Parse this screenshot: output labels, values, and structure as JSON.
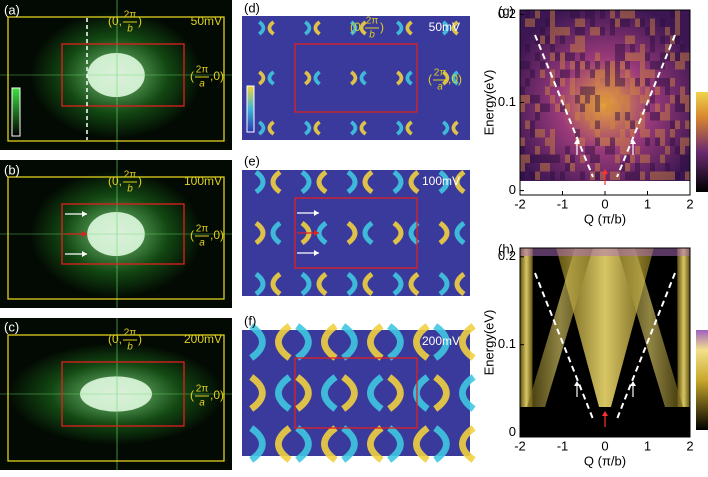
{
  "panels": [
    {
      "label": "(a)",
      "bias": "50mV",
      "top": {
        "open": "(0,",
        "num": "2π",
        "den": "b",
        "close": ")"
      },
      "right": {
        "open": "(",
        "num": "2π",
        "den": "a",
        "close": ",0)"
      }
    },
    {
      "label": "(b)",
      "bias": "100mV",
      "top": {
        "open": "(0,",
        "num": "2π",
        "den": "b",
        "close": ")"
      },
      "right": {
        "open": "(",
        "num": "2π",
        "den": "a",
        "close": ",0)"
      }
    },
    {
      "label": "(c)",
      "bias": "200mV",
      "top": {
        "open": "(0,",
        "num": "2π",
        "den": "b",
        "close": ")"
      },
      "right": {
        "open": "(",
        "num": "2π",
        "den": "a",
        "close": ",0)"
      }
    },
    {
      "label": "(d)",
      "bias": "50mV",
      "top": {
        "open": "(0,",
        "num": "2π",
        "den": "b",
        "close": ")"
      },
      "right": {
        "open": "(",
        "num": "2π",
        "den": "a",
        "close": ",0)"
      }
    },
    {
      "label": "(e)",
      "bias": "100mV"
    },
    {
      "label": "(f)",
      "bias": "200mV"
    }
  ],
  "dispersion": [
    {
      "label": "(g)",
      "ylabel": "Energy(eV)",
      "xlabel": "Q (π/b)",
      "xlim": [
        -2,
        2
      ],
      "ylim": [
        -0.005,
        0.205
      ],
      "xticks": [
        -2,
        -1,
        0,
        1,
        2
      ],
      "yticks": [
        0,
        0.1,
        0.2
      ]
    },
    {
      "label": "(h)",
      "ylabel": "Energy(eV)",
      "xlabel": "Q (π/b)",
      "xlim": [
        -2,
        2
      ],
      "ylim": [
        -0.005,
        0.21
      ],
      "xticks": [
        -2,
        -1,
        0,
        1,
        2
      ],
      "yticks": [
        0,
        0.1,
        0.2
      ]
    }
  ]
}
